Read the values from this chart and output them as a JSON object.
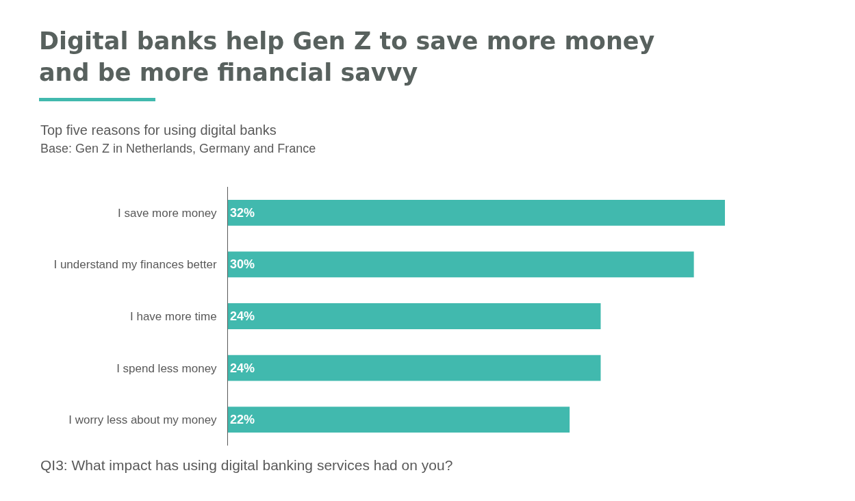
{
  "chart_data": {
    "type": "bar",
    "orientation": "horizontal",
    "title": "Digital banks help Gen Z to save more money\nand be more financial savvy",
    "subtitle": "Top five reasons for using digital banks\nBase: Gen Z in Netherlands, Germany and France",
    "annotations": [
      "QI3: What impact has using digital banking services had on you?"
    ],
    "categories": [
      "I save more money",
      "I understand my finances better",
      "I have more time",
      "I spend less money",
      "I worry less about my money"
    ],
    "values": [
      32,
      30,
      24,
      24,
      22
    ],
    "value_labels": [
      "32%",
      "30%",
      "24%",
      "24%",
      "22%"
    ],
    "color": "#41b9ae",
    "xlim": [
      0,
      32
    ],
    "tick_labels": "y"
  }
}
